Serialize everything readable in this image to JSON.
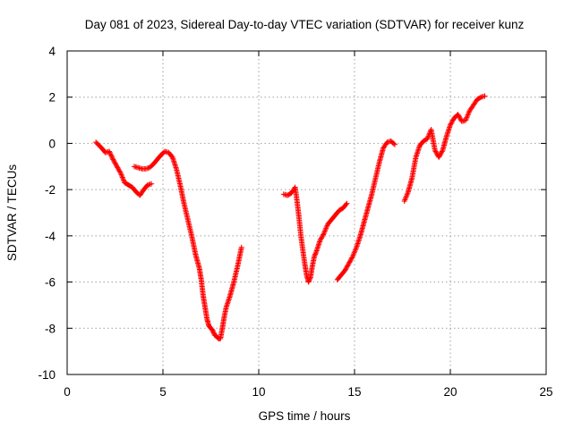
{
  "chart_data": {
    "type": "scatter",
    "title": "Day 081 of 2023, Sidereal Day-to-day VTEC variation (SDTVAR) for receiver kunz",
    "xlabel": "GPS time / hours",
    "ylabel": "SDTVAR / TECUs",
    "xlim": [
      0,
      25
    ],
    "ylim": [
      -10,
      4
    ],
    "xticks": [
      0,
      5,
      10,
      15,
      20,
      25
    ],
    "yticks": [
      -10,
      -8,
      -6,
      -4,
      -2,
      0,
      2,
      4
    ],
    "xtick_labels": [
      "0",
      "5",
      "10",
      "15",
      "20",
      "25"
    ],
    "ytick_labels": [
      "-10",
      "-8",
      "-6",
      "-4",
      "-2",
      "0",
      "2",
      "4"
    ],
    "grid": true,
    "marker": "+",
    "color": "#ff0000",
    "segments": [
      {
        "x": [
          1.5,
          1.8,
          2.0,
          2.2,
          2.4,
          2.6,
          2.8,
          3.0,
          3.2,
          3.4,
          3.6,
          3.8,
          4.0,
          4.2,
          4.4
        ],
        "y": [
          0.05,
          -0.2,
          -0.4,
          -0.35,
          -0.7,
          -1.0,
          -1.3,
          -1.7,
          -1.8,
          -1.9,
          -2.1,
          -2.25,
          -2.0,
          -1.8,
          -1.75
        ]
      },
      {
        "x": [
          3.5,
          3.7,
          3.9,
          4.1,
          4.3,
          4.5,
          4.7,
          4.9,
          5.1,
          5.3,
          5.5,
          5.7,
          5.9,
          6.1,
          6.3,
          6.5,
          6.7,
          6.9,
          7.0,
          7.1,
          7.2,
          7.3,
          7.4,
          7.5,
          7.6,
          7.7,
          7.8,
          7.9,
          8.0,
          8.1,
          8.2,
          8.3,
          8.5,
          8.7,
          8.9,
          9.1
        ],
        "y": [
          -1.0,
          -1.05,
          -1.1,
          -1.1,
          -1.05,
          -0.9,
          -0.7,
          -0.5,
          -0.35,
          -0.4,
          -0.6,
          -1.1,
          -1.8,
          -2.6,
          -3.3,
          -4.0,
          -4.8,
          -5.4,
          -5.9,
          -6.6,
          -7.1,
          -7.6,
          -7.9,
          -8.0,
          -8.1,
          -8.3,
          -8.35,
          -8.45,
          -8.45,
          -8.0,
          -7.5,
          -7.1,
          -6.6,
          -6.0,
          -5.3,
          -4.5
        ]
      },
      {
        "x": [
          11.3,
          11.5,
          11.7,
          11.9,
          12.0,
          12.1,
          12.2,
          12.3,
          12.4,
          12.5,
          12.6,
          12.7,
          12.8,
          12.9,
          13.0,
          13.2,
          13.4,
          13.6,
          13.8,
          14.0,
          14.2,
          14.4,
          14.6
        ],
        "y": [
          -2.2,
          -2.25,
          -2.15,
          -1.9,
          -2.5,
          -3.2,
          -4.0,
          -4.6,
          -5.2,
          -5.7,
          -6.0,
          -5.8,
          -5.3,
          -4.9,
          -4.7,
          -4.2,
          -3.9,
          -3.5,
          -3.3,
          -3.1,
          -2.9,
          -2.8,
          -2.6
        ]
      },
      {
        "x": [
          14.1,
          14.3,
          14.5,
          14.7,
          14.9,
          15.1,
          15.3,
          15.5,
          15.7,
          15.9,
          16.1,
          16.3,
          16.5,
          16.7,
          16.9,
          17.1
        ],
        "y": [
          -5.9,
          -5.7,
          -5.5,
          -5.2,
          -4.9,
          -4.5,
          -4.0,
          -3.4,
          -2.8,
          -2.2,
          -1.5,
          -0.8,
          -0.2,
          0.05,
          0.1,
          -0.05
        ]
      },
      {
        "x": [
          17.6,
          17.8,
          18.0,
          18.2,
          18.4,
          18.6,
          18.8,
          19.0,
          19.2,
          19.4,
          19.6,
          19.8,
          20.0,
          20.2,
          20.4,
          20.6,
          20.8,
          21.0,
          21.2,
          21.4,
          21.6,
          21.8
        ],
        "y": [
          -2.5,
          -2.1,
          -1.5,
          -0.6,
          -0.1,
          0.1,
          0.2,
          0.6,
          -0.3,
          -0.6,
          -0.3,
          0.3,
          0.8,
          1.1,
          1.25,
          0.95,
          1.0,
          1.4,
          1.65,
          1.9,
          2.0,
          2.05
        ]
      }
    ]
  }
}
